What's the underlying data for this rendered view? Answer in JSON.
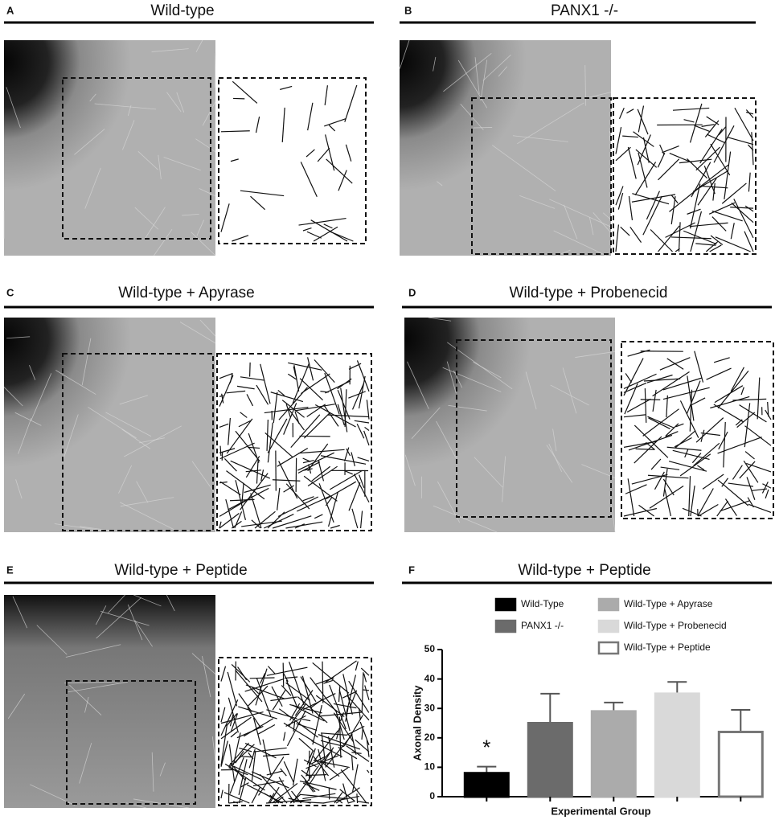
{
  "panels": [
    {
      "letter": "A",
      "title": "Wild-type"
    },
    {
      "letter": "B",
      "title": "PANX1 -/-"
    },
    {
      "letter": "C",
      "title": "Wild-type + Apyrase"
    },
    {
      "letter": "D",
      "title": "Wild-type + Probenecid"
    },
    {
      "letter": "E",
      "title": "Wild-type + Peptide"
    }
  ],
  "chart_data": {
    "type": "bar",
    "panel_letter": "F",
    "title": "Wild-type + Peptide",
    "xlabel": "Experimental Group",
    "ylabel": "Axonal Density",
    "categories": [
      "Wild-Type",
      "PANX1 -/-",
      "Wild-Type + Apyrase",
      "Wild-Type + Probenecid",
      "Wild-Type + Peptide"
    ],
    "values": [
      8,
      25,
      29,
      35,
      22
    ],
    "errors": [
      2.2,
      10,
      3,
      4,
      7.5
    ],
    "colors": [
      "#000000",
      "#6b6b6b",
      "#ababab",
      "#d9d9d9",
      "#ffffff"
    ],
    "annotation": "*",
    "ylim": [
      0,
      50
    ],
    "yticks": [
      0,
      10,
      20,
      30,
      40,
      50
    ]
  }
}
